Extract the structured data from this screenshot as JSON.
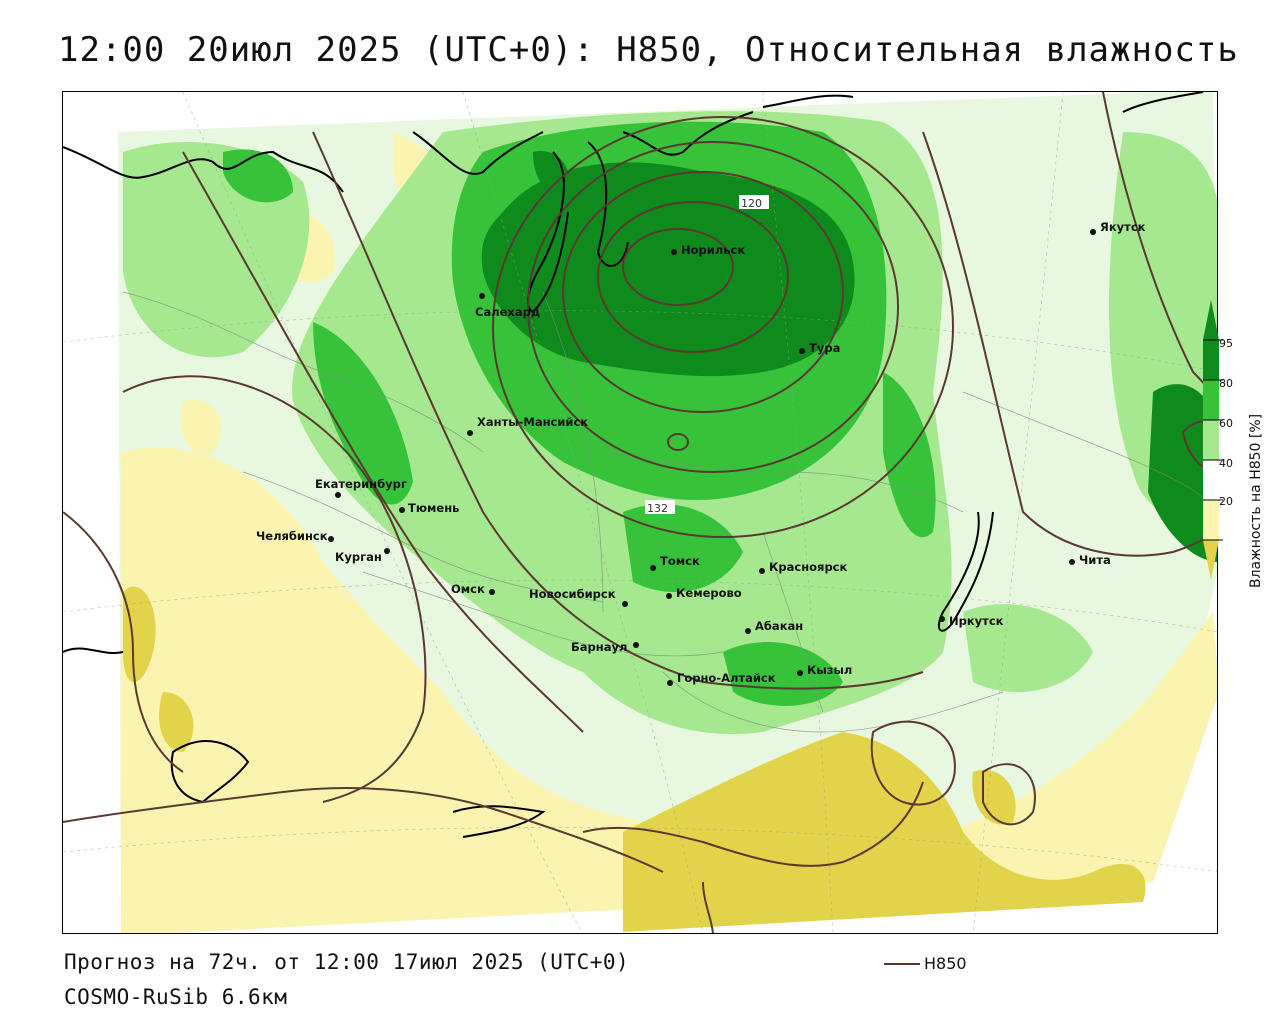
{
  "title": "12:00 20июл 2025 (UTC+0): H850, Относительная влажность",
  "footer": {
    "forecast": "Прогноз на 72ч. от 12:00 17июл 2025 (UTC+0)",
    "model": "COSMO-RuSib 6.6км"
  },
  "legend": {
    "label": "H850",
    "color": "#5a3a30"
  },
  "colorbar": {
    "title": "Влажность на H850 [%]",
    "ticks": [
      "95",
      "80",
      "60",
      "40",
      "20"
    ],
    "colors": [
      "#0f8a1c",
      "#36c33a",
      "#a6e88f",
      "#ffffff",
      "#fbf3b0",
      "#e2d44a"
    ]
  },
  "contour_labels": [
    "120",
    "132"
  ],
  "cities": [
    {
      "name": "Якутск"
    },
    {
      "name": "Норильск"
    },
    {
      "name": "Салехард"
    },
    {
      "name": "Тура"
    },
    {
      "name": "Ханты-Мансийск"
    },
    {
      "name": "Екатеринбург"
    },
    {
      "name": "Тюмень"
    },
    {
      "name": "Челябинск"
    },
    {
      "name": "Курган"
    },
    {
      "name": "Омск"
    },
    {
      "name": "Новосибирск"
    },
    {
      "name": "Томск"
    },
    {
      "name": "Кемерово"
    },
    {
      "name": "Красноярск"
    },
    {
      "name": "Абакан"
    },
    {
      "name": "Барнаул"
    },
    {
      "name": "Горно-Алтайск"
    },
    {
      "name": "Кызыл"
    },
    {
      "name": "Иркутск"
    },
    {
      "name": "Чита"
    }
  ],
  "palette": {
    "dark_green": "#0f8a1c",
    "green": "#36c33a",
    "light_green": "#a6e88f",
    "light_yellow": "#fbf3b0",
    "yellow": "#e2d44a",
    "contour": "#5a3a30"
  }
}
